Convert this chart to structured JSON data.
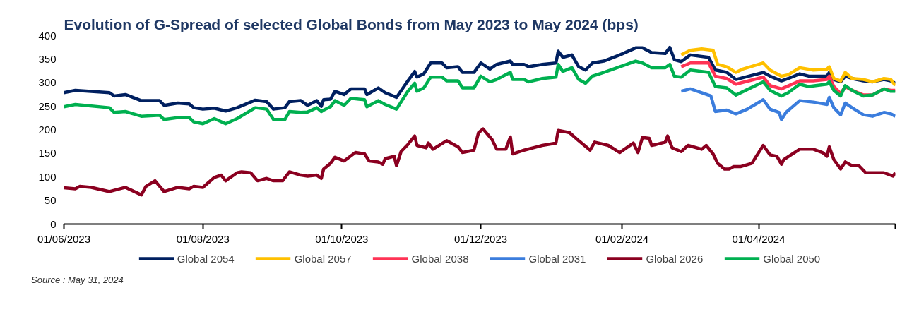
{
  "chart_data": {
    "type": "line",
    "title": "Evolution of G-Spread of selected Global Bonds from May 2023 to May 2024 (bps)",
    "annotations": [
      "Source : May 31, 2024"
    ],
    "xlim": [
      "2023-06-01",
      "2024-05-31"
    ],
    "xticks": [
      {
        "value": "2023-06-01",
        "label": "01/06/2023"
      },
      {
        "value": "2023-08-01",
        "label": "01/08/2023"
      },
      {
        "value": "2023-10-01",
        "label": "01/10/2023"
      },
      {
        "value": "2023-12-01",
        "label": "01/12/2023"
      },
      {
        "value": "2024-02-01",
        "label": "01/02/2024"
      },
      {
        "value": "2024-04-01",
        "label": "01/04/2024"
      },
      {
        "value": "2024-05-31",
        "label": null
      }
    ],
    "ylim": [
      0,
      400
    ],
    "yticks": [
      0,
      50,
      100,
      150,
      200,
      250,
      300,
      350,
      400
    ],
    "grid": false,
    "legend": "bottom",
    "line_style": "solid",
    "marker": "none",
    "series": [
      {
        "name": "Global 2054",
        "color": "#002060",
        "x": [
          "2023-06-01",
          "2023-06-06",
          "2023-06-21",
          "2023-06-23",
          "2023-06-28",
          "2023-07-05",
          "2023-07-13",
          "2023-07-15",
          "2023-07-21",
          "2023-07-26",
          "2023-07-28",
          "2023-08-01",
          "2023-08-06",
          "2023-08-11",
          "2023-08-16",
          "2023-08-24",
          "2023-08-29",
          "2023-09-01",
          "2023-09-06",
          "2023-09-08",
          "2023-09-13",
          "2023-09-16",
          "2023-09-20",
          "2023-09-22",
          "2023-09-23",
          "2023-09-26",
          "2023-09-28",
          "2023-10-02",
          "2023-10-05",
          "2023-10-11",
          "2023-10-12",
          "2023-10-17",
          "2023-10-20",
          "2023-10-25",
          "2023-10-30",
          "2023-11-02",
          "2023-11-03",
          "2023-11-06",
          "2023-11-09",
          "2023-11-14",
          "2023-11-16",
          "2023-11-21",
          "2023-11-23",
          "2023-11-28",
          "2023-12-01",
          "2023-12-05",
          "2023-12-08",
          "2023-12-14",
          "2023-12-15",
          "2023-12-20",
          "2023-12-22",
          "2023-12-28",
          "2024-01-03",
          "2024-01-04",
          "2024-01-06",
          "2024-01-10",
          "2024-01-13",
          "2024-01-16",
          "2024-01-19",
          "2024-01-24",
          "2024-01-31",
          "2024-02-07",
          "2024-02-10",
          "2024-02-14",
          "2024-02-20",
          "2024-02-22",
          "2024-02-24",
          "2024-02-27",
          "2024-03-02",
          "2024-03-10",
          "2024-03-13",
          "2024-03-18",
          "2024-03-22",
          "2024-04-03",
          "2024-04-06",
          "2024-04-11",
          "2024-04-14",
          "2024-04-19",
          "2024-04-23",
          "2024-05-01",
          "2024-05-02",
          "2024-05-04",
          "2024-05-07",
          "2024-05-09",
          "2024-05-12",
          "2024-05-17",
          "2024-05-21",
          "2024-05-26",
          "2024-05-29",
          "2024-05-31"
        ],
        "values": [
          279,
          284,
          279,
          272,
          275,
          262,
          262,
          252,
          257,
          255,
          247,
          244,
          246,
          240,
          247,
          263,
          260,
          244,
          247,
          260,
          262,
          252,
          262,
          250,
          264,
          265,
          282,
          275,
          287,
          287,
          275,
          289,
          279,
          269,
          304,
          324,
          312,
          319,
          342,
          342,
          332,
          334,
          322,
          322,
          342,
          329,
          339,
          346,
          339,
          339,
          334,
          339,
          342,
          367,
          354,
          359,
          334,
          327,
          342,
          346,
          359,
          374,
          374,
          364,
          362,
          375,
          349,
          345,
          359,
          354,
          327,
          322,
          307,
          322,
          314,
          304,
          309,
          319,
          314,
          314,
          322,
          307,
          302,
          314,
          309,
          304,
          302,
          307,
          304,
          299
        ]
      },
      {
        "name": "Global 2057",
        "color": "#ffc000",
        "x": [
          "2024-02-27",
          "2024-03-02",
          "2024-03-07",
          "2024-03-12",
          "2024-03-14",
          "2024-03-18",
          "2024-03-22",
          "2024-03-25",
          "2024-04-03",
          "2024-04-06",
          "2024-04-11",
          "2024-04-14",
          "2024-04-19",
          "2024-04-25",
          "2024-05-01",
          "2024-05-02",
          "2024-05-04",
          "2024-05-07",
          "2024-05-09",
          "2024-05-12",
          "2024-05-17",
          "2024-05-21",
          "2024-05-26",
          "2024-05-29",
          "2024-05-31"
        ],
        "values": [
          359,
          369,
          372,
          369,
          339,
          334,
          322,
          329,
          342,
          327,
          314,
          317,
          332,
          327,
          329,
          334,
          309,
          304,
          322,
          309,
          307,
          302,
          309,
          307,
          294
        ]
      },
      {
        "name": "Global 2038",
        "color": "#ff3355",
        "x": [
          "2024-02-27",
          "2024-03-02",
          "2024-03-10",
          "2024-03-13",
          "2024-03-18",
          "2024-03-22",
          "2024-04-03",
          "2024-04-06",
          "2024-04-11",
          "2024-04-19",
          "2024-04-25",
          "2024-05-01",
          "2024-05-02",
          "2024-05-04",
          "2024-05-07",
          "2024-05-09",
          "2024-05-12",
          "2024-05-17",
          "2024-05-21",
          "2024-05-26",
          "2024-05-29",
          "2024-05-31"
        ],
        "values": [
          334,
          342,
          342,
          314,
          309,
          297,
          312,
          294,
          287,
          304,
          304,
          307,
          314,
          292,
          277,
          292,
          284,
          274,
          274,
          287,
          284,
          284
        ]
      },
      {
        "name": "Global 2031",
        "color": "#3b7ddd",
        "x": [
          "2024-02-27",
          "2024-03-02",
          "2024-03-07",
          "2024-03-11",
          "2024-03-13",
          "2024-03-18",
          "2024-03-22",
          "2024-03-27",
          "2024-04-03",
          "2024-04-06",
          "2024-04-10",
          "2024-04-11",
          "2024-04-13",
          "2024-04-19",
          "2024-04-25",
          "2024-05-01",
          "2024-05-02",
          "2024-05-04",
          "2024-05-07",
          "2024-05-09",
          "2024-05-12",
          "2024-05-17",
          "2024-05-21",
          "2024-05-26",
          "2024-05-29",
          "2024-05-31"
        ],
        "values": [
          282,
          287,
          279,
          272,
          239,
          242,
          234,
          244,
          264,
          244,
          237,
          222,
          237,
          262,
          259,
          254,
          269,
          247,
          232,
          257,
          247,
          232,
          229,
          237,
          234,
          229
        ]
      },
      {
        "name": "Global 2026",
        "color": "#8b0020",
        "x": [
          "2023-06-01",
          "2023-06-06",
          "2023-06-08",
          "2023-06-13",
          "2023-06-21",
          "2023-06-28",
          "2023-07-05",
          "2023-07-07",
          "2023-07-11",
          "2023-07-15",
          "2023-07-21",
          "2023-07-26",
          "2023-07-28",
          "2023-08-01",
          "2023-08-06",
          "2023-08-09",
          "2023-08-11",
          "2023-08-16",
          "2023-08-18",
          "2023-08-22",
          "2023-08-25",
          "2023-08-29",
          "2023-09-01",
          "2023-09-05",
          "2023-09-08",
          "2023-09-13",
          "2023-09-16",
          "2023-09-20",
          "2023-09-22",
          "2023-09-23",
          "2023-09-26",
          "2023-09-28",
          "2023-10-02",
          "2023-10-07",
          "2023-10-11",
          "2023-10-13",
          "2023-10-17",
          "2023-10-19",
          "2023-10-20",
          "2023-10-24",
          "2023-10-25",
          "2023-10-27",
          "2023-10-30",
          "2023-11-02",
          "2023-11-03",
          "2023-11-07",
          "2023-11-08",
          "2023-11-10",
          "2023-11-16",
          "2023-11-21",
          "2023-11-23",
          "2023-11-28",
          "2023-11-30",
          "2023-12-02",
          "2023-12-06",
          "2023-12-08",
          "2023-12-12",
          "2023-12-14",
          "2023-12-15",
          "2023-12-20",
          "2023-12-28",
          "2024-01-03",
          "2024-01-04",
          "2024-01-09",
          "2024-01-13",
          "2024-01-18",
          "2024-01-20",
          "2024-01-26",
          "2024-01-31",
          "2024-02-06",
          "2024-02-08",
          "2024-02-10",
          "2024-02-13",
          "2024-02-14",
          "2024-02-16",
          "2024-02-20",
          "2024-02-21",
          "2024-02-23",
          "2024-02-27",
          "2024-03-01",
          "2024-03-07",
          "2024-03-09",
          "2024-03-12",
          "2024-03-14",
          "2024-03-17",
          "2024-03-19",
          "2024-03-21",
          "2024-03-24",
          "2024-03-29",
          "2024-04-03",
          "2024-04-06",
          "2024-04-09",
          "2024-04-11",
          "2024-04-12",
          "2024-04-19",
          "2024-04-25",
          "2024-04-29",
          "2024-05-01",
          "2024-05-02",
          "2024-05-04",
          "2024-05-07",
          "2024-05-09",
          "2024-05-12",
          "2024-05-15",
          "2024-05-18",
          "2024-05-24",
          "2024-05-26",
          "2024-05-30",
          "2024-05-31"
        ],
        "values": [
          77,
          75,
          80,
          78,
          69,
          78,
          62,
          80,
          92,
          69,
          78,
          75,
          80,
          78,
          99,
          104,
          92,
          109,
          111,
          109,
          92,
          97,
          92,
          92,
          111,
          104,
          102,
          104,
          97,
          117,
          129,
          142,
          134,
          152,
          149,
          134,
          132,
          127,
          139,
          144,
          124,
          154,
          169,
          187,
          167,
          162,
          172,
          159,
          177,
          164,
          152,
          157,
          194,
          202,
          179,
          159,
          159,
          185,
          149,
          157,
          167,
          172,
          199,
          194,
          177,
          157,
          174,
          167,
          152,
          172,
          152,
          184,
          182,
          167,
          169,
          174,
          187,
          162,
          154,
          167,
          159,
          167,
          149,
          129,
          117,
          117,
          122,
          122,
          129,
          167,
          147,
          144,
          127,
          137,
          159,
          159,
          152,
          144,
          164,
          137,
          117,
          132,
          124,
          124,
          109,
          109,
          109,
          102,
          109
        ]
      },
      {
        "name": "Global 2050",
        "color": "#00b050",
        "x": [
          "2023-06-01",
          "2023-06-06",
          "2023-06-21",
          "2023-06-23",
          "2023-06-28",
          "2023-07-05",
          "2023-07-13",
          "2023-07-15",
          "2023-07-21",
          "2023-07-26",
          "2023-07-28",
          "2023-08-01",
          "2023-08-06",
          "2023-08-11",
          "2023-08-16",
          "2023-08-24",
          "2023-08-29",
          "2023-09-01",
          "2023-09-06",
          "2023-09-08",
          "2023-09-13",
          "2023-09-16",
          "2023-09-20",
          "2023-09-22",
          "2023-09-23",
          "2023-09-26",
          "2023-09-28",
          "2023-10-02",
          "2023-10-05",
          "2023-10-11",
          "2023-10-12",
          "2023-10-17",
          "2023-10-20",
          "2023-10-25",
          "2023-10-30",
          "2023-11-02",
          "2023-11-03",
          "2023-11-06",
          "2023-11-09",
          "2023-11-14",
          "2023-11-16",
          "2023-11-21",
          "2023-11-23",
          "2023-11-28",
          "2023-12-01",
          "2023-12-05",
          "2023-12-08",
          "2023-12-14",
          "2023-12-15",
          "2023-12-20",
          "2023-12-22",
          "2023-12-28",
          "2024-01-03",
          "2024-01-04",
          "2024-01-06",
          "2024-01-10",
          "2024-01-13",
          "2024-01-16",
          "2024-01-19",
          "2024-01-24",
          "2024-01-31",
          "2024-02-07",
          "2024-02-10",
          "2024-02-14",
          "2024-02-20",
          "2024-02-22",
          "2024-02-24",
          "2024-02-27",
          "2024-03-02",
          "2024-03-10",
          "2024-03-13",
          "2024-03-18",
          "2024-03-22",
          "2024-04-03",
          "2024-04-06",
          "2024-04-11",
          "2024-04-14",
          "2024-04-19",
          "2024-04-23",
          "2024-05-01",
          "2024-05-02",
          "2024-05-04",
          "2024-05-07",
          "2024-05-09",
          "2024-05-12",
          "2024-05-17",
          "2024-05-21",
          "2024-05-26",
          "2024-05-29",
          "2024-05-31"
        ],
        "values": [
          249,
          254,
          247,
          237,
          239,
          229,
          231,
          222,
          226,
          226,
          217,
          213,
          224,
          213,
          224,
          247,
          244,
          222,
          222,
          239,
          237,
          238,
          247,
          239,
          242,
          249,
          262,
          252,
          267,
          264,
          249,
          262,
          254,
          244,
          282,
          299,
          282,
          289,
          312,
          312,
          304,
          304,
          289,
          289,
          314,
          302,
          307,
          322,
          307,
          307,
          302,
          309,
          312,
          339,
          324,
          332,
          307,
          299,
          314,
          322,
          334,
          346,
          342,
          332,
          332,
          339,
          314,
          312,
          327,
          322,
          292,
          289,
          274,
          302,
          284,
          272,
          279,
          297,
          292,
          297,
          302,
          284,
          272,
          294,
          284,
          272,
          274,
          287,
          282,
          282
        ]
      }
    ]
  }
}
